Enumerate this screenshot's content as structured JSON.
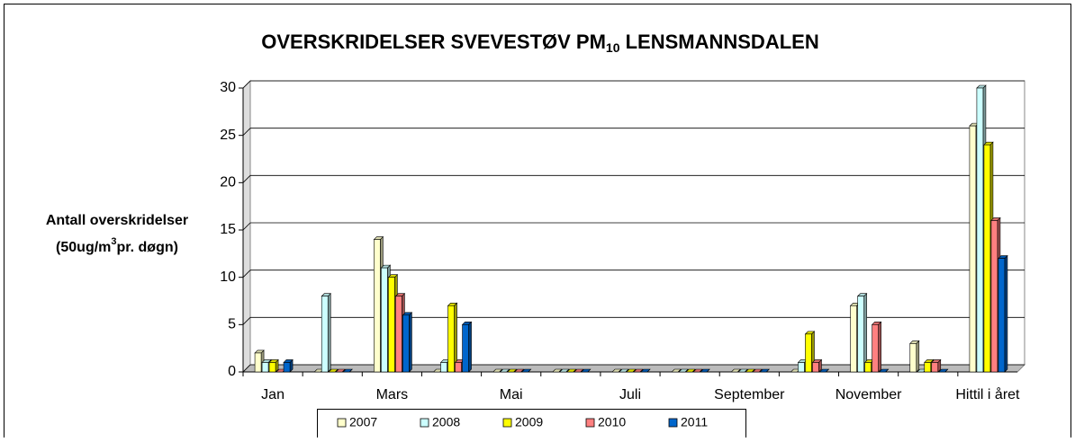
{
  "chart_data": {
    "type": "bar",
    "title": {
      "main": "OVERSKRIDELSER SVEVESTØV PM",
      "sub": "10",
      "end": " LENSMANNSDALEN"
    },
    "y_label": {
      "line1": "Antall overskridelser",
      "line2_start": "(50ug/m",
      "line2_sup": "3",
      "line2_end": "pr. døgn)"
    },
    "categories": [
      "Jan",
      null,
      "Mars",
      null,
      "Mai",
      null,
      "Juli",
      null,
      "September",
      null,
      "November",
      null,
      "Hittil i året"
    ],
    "series": [
      {
        "name": "2007",
        "color": "#ffffcc",
        "values": [
          2,
          0,
          14,
          0,
          0,
          0,
          0,
          0,
          0,
          0,
          7,
          3,
          26
        ]
      },
      {
        "name": "2008",
        "color": "#ccffff",
        "values": [
          1,
          8,
          11,
          1,
          0,
          0,
          0,
          0,
          0,
          1,
          8,
          0,
          30
        ]
      },
      {
        "name": "2009",
        "color": "#ffff00",
        "values": [
          1,
          0,
          10,
          7,
          0,
          0,
          0,
          0,
          0,
          4,
          1,
          1,
          24
        ]
      },
      {
        "name": "2010",
        "color": "#ff8080",
        "values": [
          0,
          0,
          8,
          1,
          0,
          0,
          0,
          0,
          0,
          1,
          5,
          1,
          16
        ]
      },
      {
        "name": "2011",
        "color": "#0066cc",
        "values": [
          1,
          0,
          6,
          5,
          0,
          0,
          0,
          0,
          0,
          0,
          0,
          0,
          12
        ]
      }
    ],
    "ylim": [
      0,
      30
    ],
    "yticks": [
      0,
      5,
      10,
      15,
      20,
      25,
      30
    ],
    "grid": true,
    "legend": "bottom"
  }
}
